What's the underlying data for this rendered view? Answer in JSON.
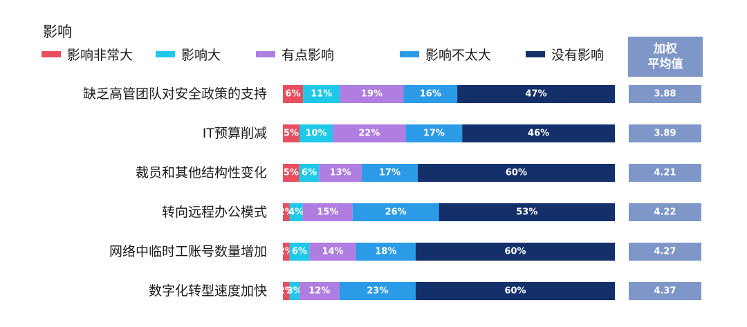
{
  "chart_data": {
    "type": "bar",
    "stacked": true,
    "orientation": "horizontal",
    "legend_title": "影响",
    "categories": [
      "缺乏高管团队对安全政策的支持",
      "IT预算削减",
      "裁员和其他结构性变化",
      "转向远程办公模式",
      "网络中临时工账号数量增加",
      "数字化转型速度加快"
    ],
    "series": [
      {
        "name": "影响非常大",
        "color": "#e84e5f",
        "values": [
          6,
          5,
          5,
          2,
          2,
          2
        ]
      },
      {
        "name": "影响大",
        "color": "#1fc8e8",
        "values": [
          11,
          10,
          6,
          4,
          6,
          3
        ]
      },
      {
        "name": "有点影响",
        "color": "#b07de0",
        "values": [
          19,
          22,
          13,
          15,
          14,
          12
        ]
      },
      {
        "name": "影响不太大",
        "color": "#2b9be8",
        "values": [
          16,
          17,
          17,
          26,
          18,
          23
        ]
      },
      {
        "name": "没有影响",
        "color": "#14306b",
        "values": [
          47,
          46,
          60,
          53,
          60,
          60
        ]
      }
    ],
    "value_suffix": "%",
    "weighted_average": {
      "header": [
        "加权",
        "平均值"
      ],
      "color": "#7f97c8",
      "values": [
        "3.88",
        "3.89",
        "4.21",
        "4.22",
        "4.27",
        "4.37"
      ]
    },
    "grid": false,
    "legend_position": "top"
  }
}
